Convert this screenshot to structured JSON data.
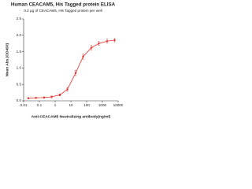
{
  "chart_data": {
    "type": "line",
    "title": "Human CEACAM5, His Tagged protein ELISA",
    "subtitle": "0.2 μg of CEACAM5, His Tagged protein per well",
    "x_label": "Anti-CEACAM5 Neutralizing antibody(ng/ml)",
    "y_label": "Mean Abs.(OD450)",
    "x": [
      0.02,
      0.06,
      0.2,
      0.6,
      2,
      6,
      20,
      60,
      200,
      600,
      2000,
      6000
    ],
    "series": [
      {
        "name": "CEACAM5",
        "color": "#e8322c",
        "values": [
          0.08,
          0.09,
          0.1,
          0.12,
          0.18,
          0.35,
          0.85,
          1.35,
          1.62,
          1.75,
          1.82,
          1.85
        ],
        "errors": [
          0.02,
          0.02,
          0.02,
          0.03,
          0.03,
          0.05,
          0.08,
          0.08,
          0.07,
          0.06,
          0.06,
          0.05
        ]
      }
    ],
    "xscale": "log",
    "xlim": [
      0.01,
      10000
    ],
    "xticks": [
      0.01,
      0.1,
      1,
      10,
      100,
      1000,
      10000
    ],
    "ylim": [
      0,
      2.5
    ],
    "yticks": [
      {
        "value": 0,
        "label": "0.0"
      },
      {
        "value": 0.5,
        "label": "0.5"
      },
      {
        "value": 1,
        "label": "1.0"
      },
      {
        "value": 1.5,
        "label": "1.5"
      },
      {
        "value": 2,
        "label": "2.0"
      },
      {
        "value": 2.5,
        "label": "2.5"
      }
    ]
  }
}
